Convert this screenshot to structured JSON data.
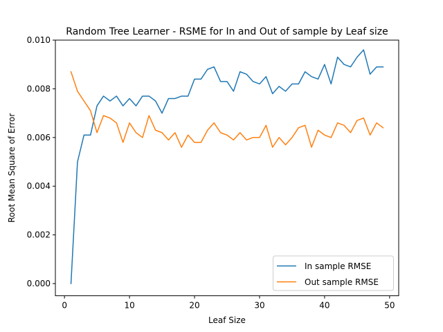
{
  "chart_data": {
    "type": "line",
    "title": "Random Tree Learner - RSME for In and Out of sample by Leaf size",
    "xlabel": "Leaf Size",
    "ylabel": "Root Mean Square of Error",
    "xlim": [
      -1.4,
      51.4
    ],
    "ylim": [
      -0.0005,
      0.01
    ],
    "xticks": [
      0,
      10,
      20,
      30,
      40,
      50
    ],
    "yticks": [
      0.0,
      0.002,
      0.004,
      0.006,
      0.008,
      0.01
    ],
    "ytick_labels": [
      "0.000",
      "0.002",
      "0.004",
      "0.006",
      "0.008",
      "0.010"
    ],
    "grid": false,
    "legend_position": "lower-right",
    "x": [
      1,
      2,
      3,
      4,
      5,
      6,
      7,
      8,
      9,
      10,
      11,
      12,
      13,
      14,
      15,
      16,
      17,
      18,
      19,
      20,
      21,
      22,
      23,
      24,
      25,
      26,
      27,
      28,
      29,
      30,
      31,
      32,
      33,
      34,
      35,
      36,
      37,
      38,
      39,
      40,
      41,
      42,
      43,
      44,
      45,
      46,
      47,
      48,
      49
    ],
    "series": [
      {
        "name": "In sample RMSE",
        "color": "#1f77b4",
        "values": [
          0.0,
          0.005,
          0.0061,
          0.0061,
          0.0073,
          0.0077,
          0.0075,
          0.0077,
          0.0073,
          0.0076,
          0.0073,
          0.0077,
          0.0077,
          0.0075,
          0.007,
          0.0076,
          0.0076,
          0.0077,
          0.0077,
          0.0084,
          0.0084,
          0.0088,
          0.0089,
          0.0083,
          0.0083,
          0.0079,
          0.0087,
          0.0086,
          0.0083,
          0.0082,
          0.0085,
          0.0078,
          0.0081,
          0.0079,
          0.0082,
          0.0082,
          0.0087,
          0.0085,
          0.0084,
          0.009,
          0.0082,
          0.0093,
          0.009,
          0.0089,
          0.0093,
          0.0096,
          0.0086,
          0.0089,
          0.0089
        ]
      },
      {
        "name": "Out sample RMSE",
        "color": "#ff7f0e",
        "values": [
          0.0087,
          0.0079,
          0.0075,
          0.0071,
          0.0062,
          0.0069,
          0.0068,
          0.0066,
          0.0058,
          0.0066,
          0.0062,
          0.006,
          0.0069,
          0.0063,
          0.0062,
          0.0059,
          0.0062,
          0.0056,
          0.0061,
          0.0058,
          0.0058,
          0.0063,
          0.0066,
          0.0062,
          0.0061,
          0.0059,
          0.0062,
          0.0059,
          0.006,
          0.006,
          0.0065,
          0.0056,
          0.006,
          0.0057,
          0.006,
          0.0064,
          0.0065,
          0.0056,
          0.0063,
          0.0061,
          0.006,
          0.0066,
          0.0065,
          0.0062,
          0.0067,
          0.0068,
          0.0061,
          0.0066,
          0.0064
        ]
      }
    ]
  }
}
